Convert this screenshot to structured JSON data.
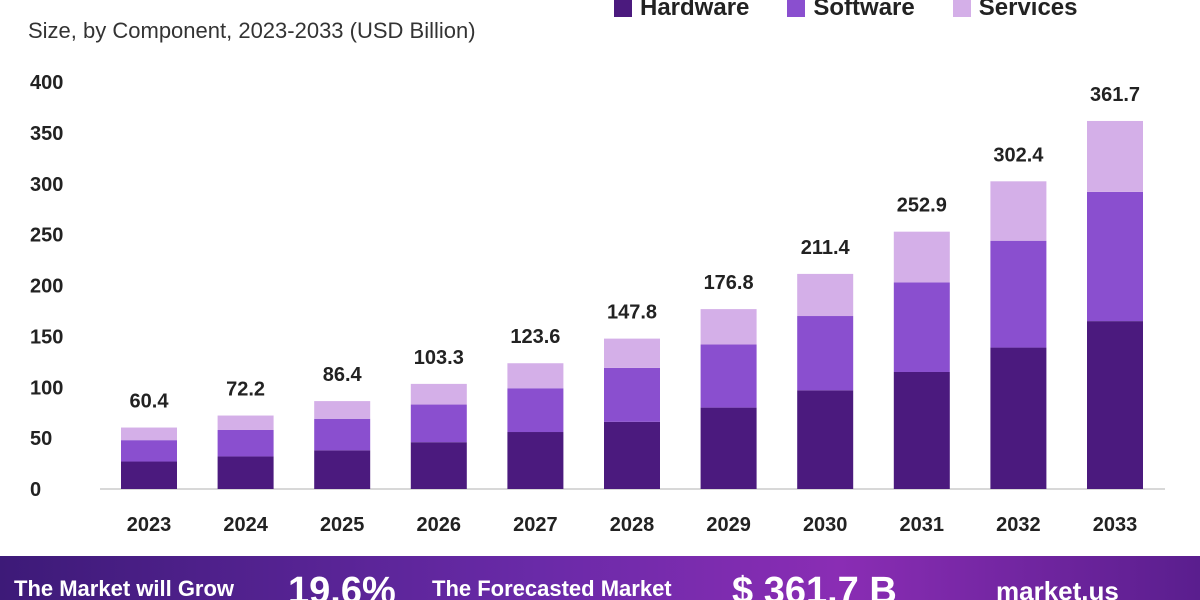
{
  "chart_data": {
    "type": "stacked-bar",
    "subtitle": "Size, by Component, 2023-2033 (USD Billion)",
    "categories": [
      "2023",
      "2024",
      "2025",
      "2026",
      "2027",
      "2028",
      "2029",
      "2030",
      "2031",
      "2032",
      "2033"
    ],
    "series": [
      {
        "name": "Hardware",
        "color": "#4b1a7e",
        "values": [
          27,
          32,
          38,
          46,
          56,
          66,
          80,
          97,
          115,
          139,
          165
        ]
      },
      {
        "name": "Software",
        "color": "#8a4fcf",
        "values": [
          21,
          26,
          31,
          37,
          43,
          53,
          62,
          73,
          88,
          105,
          127
        ]
      },
      {
        "name": "Services",
        "color": "#d4afe8",
        "values": [
          12.4,
          14.2,
          17.4,
          20.3,
          24.6,
          28.8,
          34.8,
          41.4,
          49.9,
          58.4,
          69.7
        ]
      }
    ],
    "totals": [
      "60.4",
      "72.2",
      "86.4",
      "103.3",
      "123.6",
      "147.8",
      "176.8",
      "211.4",
      "252.9",
      "302.4",
      "361.7"
    ],
    "total_values": [
      60.4,
      72.2,
      86.4,
      103.3,
      123.6,
      147.8,
      176.8,
      211.4,
      252.9,
      302.4,
      361.7
    ],
    "yticks": [
      0,
      50,
      100,
      150,
      200,
      250,
      300,
      350,
      400
    ],
    "ylim": [
      0,
      400
    ],
    "legend_position": "top-right"
  },
  "footer": {
    "grow_text": "The Market will Grow",
    "cagr": "19.6%",
    "forecast_text": "The Forecasted Market",
    "forecast_value": "$ 361.7 B",
    "brand": "market.us"
  }
}
